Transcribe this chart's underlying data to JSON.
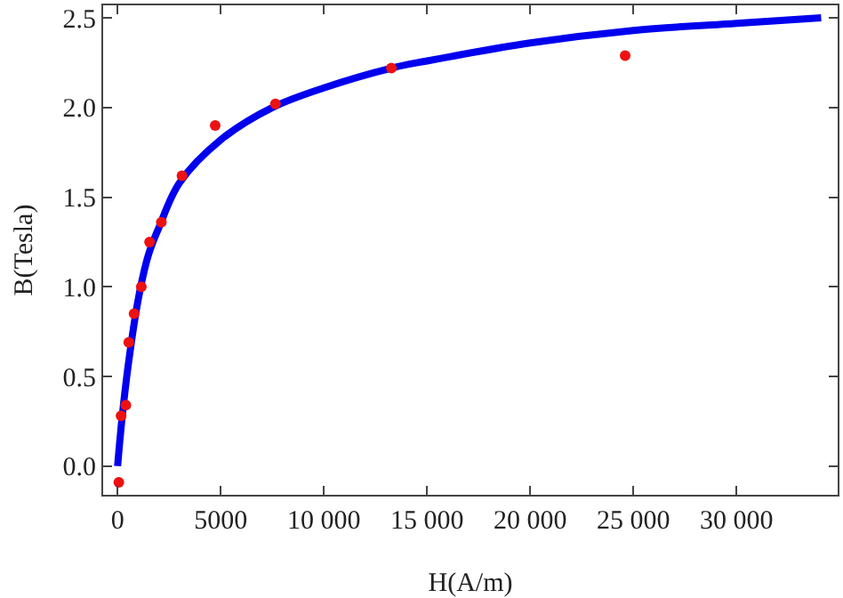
{
  "chart_data": {
    "type": "scatter",
    "xlabel": "H(A/m)",
    "ylabel": "B(Tesla)",
    "xlim": [
      -700,
      34900
    ],
    "ylim": [
      -0.16,
      2.57
    ],
    "xticks": [
      0,
      5000,
      {
        "value": 10000,
        "label": "10 000"
      },
      {
        "value": 15000,
        "label": "15 000"
      },
      {
        "value": 20000,
        "label": "20 000"
      },
      {
        "value": 25000,
        "label": "25 000"
      },
      {
        "value": 30000,
        "label": "30 000"
      }
    ],
    "yticks": [
      {
        "value": 0,
        "label": "0.0"
      },
      0.5,
      {
        "value": 1,
        "label": "1.0"
      },
      1.5,
      {
        "value": 2,
        "label": "2.0"
      },
      2.5
    ],
    "grid": false,
    "series": [
      {
        "type": "line",
        "color": "#0000ee",
        "marker": "none",
        "line_style": "solid",
        "x": [
          0,
          200,
          500,
          1000,
          1500,
          2000,
          3000,
          5000,
          7500,
          10000,
          13270,
          15000,
          20000,
          25000,
          30000,
          34100
        ],
        "values": [
          0,
          0.25,
          0.55,
          0.93,
          1.18,
          1.33,
          1.58,
          1.82,
          2.0,
          2.11,
          2.22,
          2.26,
          2.36,
          2.43,
          2.47,
          2.5
        ]
      },
      {
        "color": "#ee1111",
        "marker": "circle",
        "x": [
          60,
          170,
          400,
          540,
          800,
          1150,
          1550,
          2120,
          3120,
          4730,
          7650,
          13270,
          24600
        ],
        "values": [
          -0.09,
          0.28,
          0.34,
          0.69,
          0.85,
          1.0,
          1.25,
          1.36,
          1.62,
          1.9,
          2.02,
          2.22,
          2.29
        ]
      }
    ]
  }
}
